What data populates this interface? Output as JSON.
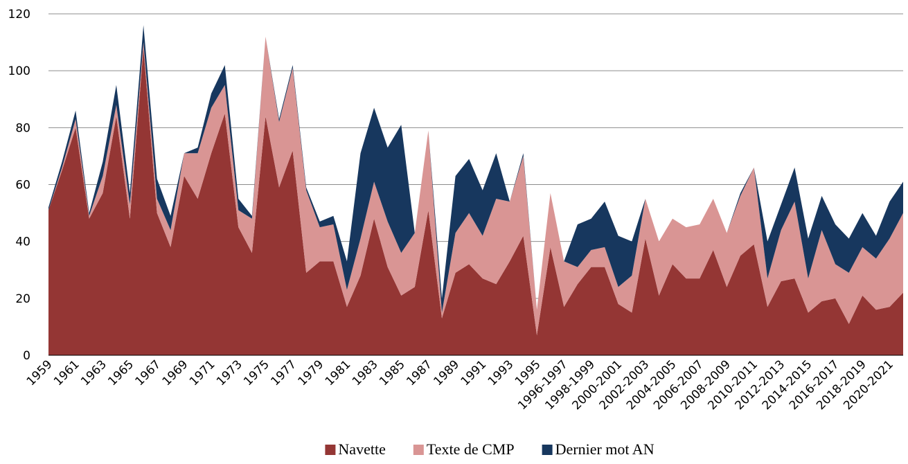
{
  "chart_data": {
    "type": "stacked_area",
    "categories": [
      "1959",
      null,
      "1961",
      null,
      "1963",
      null,
      "1965",
      null,
      "1967",
      null,
      "1969",
      null,
      "1971",
      null,
      "1973",
      null,
      "1975",
      null,
      "1977",
      null,
      "1979",
      null,
      "1981",
      null,
      "1983",
      null,
      "1985",
      null,
      "1987",
      null,
      "1989",
      null,
      "1991",
      null,
      "1993",
      null,
      "1995",
      null,
      "1996-1997",
      null,
      "1998-1999",
      null,
      "2000-2001",
      null,
      "2002-2003",
      null,
      "2004-2005",
      null,
      "2006-2007",
      null,
      "2008-2009",
      null,
      "2010-2011",
      null,
      "2012-2013",
      null,
      "2014-2015",
      null,
      "2016-2017",
      null,
      "2018-2019",
      null,
      "2020-2021",
      null
    ],
    "series": [
      {
        "name": "Navette",
        "color": "#943634",
        "values": [
          51,
          65,
          80,
          48,
          57,
          84,
          48,
          108,
          50,
          38,
          63,
          55,
          71,
          85,
          45,
          36,
          84,
          59,
          72,
          29,
          33,
          33,
          17,
          28,
          48,
          31,
          21,
          24,
          51,
          13,
          29,
          32,
          27,
          25,
          33,
          42,
          7,
          38,
          17,
          25,
          31,
          31,
          18,
          15,
          41,
          21,
          32,
          27,
          27,
          37,
          24,
          35,
          39,
          17,
          26,
          27,
          15,
          19,
          20,
          11,
          21,
          16,
          17,
          22
        ]
      },
      {
        "name": "Texte de CMP",
        "color": "#d99594",
        "values": [
          0,
          1,
          3,
          1,
          6,
          4,
          5,
          2,
          5,
          6,
          8,
          16,
          16,
          10,
          6,
          12,
          28,
          23,
          29,
          29,
          12,
          13,
          6,
          13,
          13,
          16,
          15,
          19,
          28,
          2,
          14,
          18,
          15,
          30,
          21,
          28,
          9,
          19,
          16,
          6,
          6,
          7,
          6,
          13,
          14,
          19,
          16,
          18,
          19,
          18,
          19,
          21,
          27,
          10,
          18,
          27,
          12,
          25,
          12,
          18,
          17,
          18,
          24,
          28
        ]
      },
      {
        "name": "Dernier mot AN",
        "color": "#17375e",
        "values": [
          1,
          2,
          3,
          1,
          5,
          7,
          4,
          6,
          7,
          5,
          0,
          2,
          5,
          7,
          4,
          1,
          0,
          1,
          1,
          1,
          2,
          3,
          10,
          30,
          26,
          26,
          45,
          0,
          0,
          5,
          20,
          19,
          16,
          16,
          0,
          1,
          0,
          0,
          0,
          15,
          11,
          16,
          18,
          12,
          0,
          0,
          0,
          0,
          0,
          0,
          0,
          1,
          0,
          13,
          9,
          12,
          14,
          12,
          14,
          12,
          12,
          8,
          13,
          11
        ]
      }
    ],
    "ylim": [
      0,
      120
    ],
    "yticks": [
      0,
      20,
      40,
      60,
      80,
      100,
      120
    ],
    "grid": true,
    "legend": "bottom"
  }
}
